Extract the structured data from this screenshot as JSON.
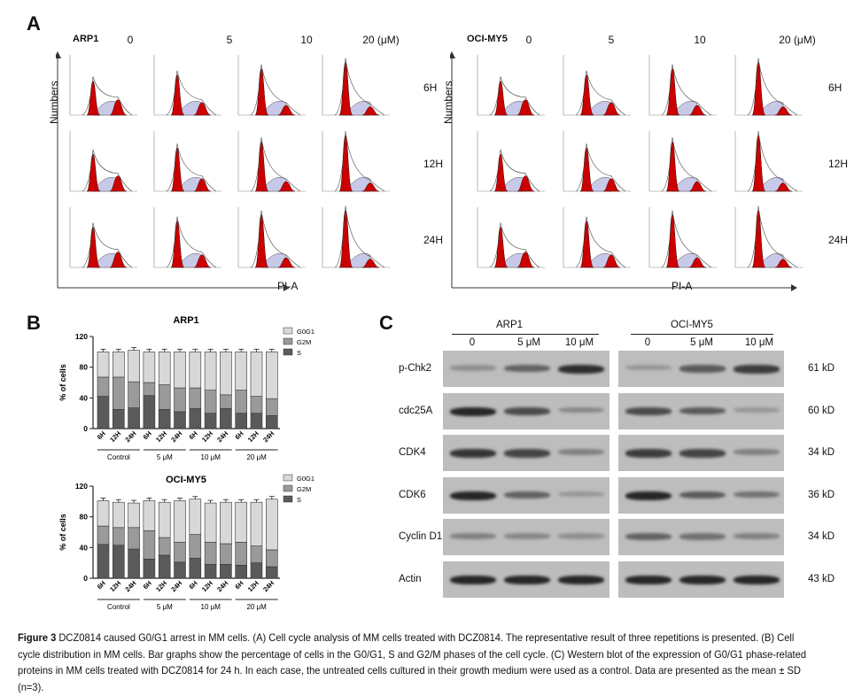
{
  "panel_a": {
    "label": "A",
    "concentrations": [
      "0",
      "5",
      "10",
      "20 (μM)"
    ],
    "times": [
      "6H",
      "12H",
      "24H"
    ],
    "y_axis_label": "Numbers",
    "x_axis_label": "PI-A",
    "groups": [
      {
        "name": "ARP1"
      },
      {
        "name": "OCI-MY5"
      }
    ],
    "colors": {
      "g1_g2_peak": "#cc0000",
      "s_phase": "#c8c8e8"
    }
  },
  "panel_b": {
    "label": "B"
  },
  "chart_data": [
    {
      "type": "bar",
      "stacked": true,
      "title": "ARP1",
      "ylabel": "% of cells",
      "ylim": [
        0,
        120
      ],
      "yticks": [
        0,
        40,
        80,
        120
      ],
      "categories": [
        "6H",
        "12H",
        "24H",
        "6H",
        "12H",
        "24H",
        "6H",
        "12H",
        "24H",
        "6H",
        "12H",
        "24H"
      ],
      "groups": [
        "Control",
        "5 μM",
        "10 μM",
        "20 μM"
      ],
      "legend": "right",
      "series": [
        {
          "name": "S",
          "color": "#5a5a5a",
          "values": [
            42,
            25,
            27,
            43,
            25,
            22,
            26,
            20,
            26,
            20,
            20,
            17
          ]
        },
        {
          "name": "G2M",
          "color": "#9a9a9a",
          "values": [
            25,
            42,
            34,
            17,
            32,
            31,
            27,
            30,
            18,
            30,
            22,
            22
          ]
        },
        {
          "name": "G0G1",
          "color": "#d8d8d8",
          "values": [
            33,
            33,
            41,
            40,
            43,
            47,
            47,
            50,
            56,
            50,
            58,
            61
          ]
        }
      ]
    },
    {
      "type": "bar",
      "stacked": true,
      "title": "OCI-MY5",
      "ylabel": "% of cells",
      "ylim": [
        0,
        120
      ],
      "yticks": [
        0,
        40,
        80,
        120
      ],
      "categories": [
        "6H",
        "12H",
        "24H",
        "6H",
        "12H",
        "24H",
        "6H",
        "12H",
        "24H",
        "6H",
        "12H",
        "24H"
      ],
      "groups": [
        "Control",
        "5 μM",
        "10 μM",
        "20 μM"
      ],
      "legend": "right",
      "series": [
        {
          "name": "S",
          "color": "#5a5a5a",
          "values": [
            44,
            43,
            38,
            25,
            30,
            21,
            26,
            18,
            18,
            17,
            20,
            15
          ]
        },
        {
          "name": "G2M",
          "color": "#9a9a9a",
          "values": [
            24,
            23,
            28,
            37,
            23,
            26,
            31,
            29,
            27,
            30,
            22,
            22
          ]
        },
        {
          "name": "G0G1",
          "color": "#d8d8d8",
          "values": [
            33,
            33,
            32,
            39,
            46,
            54,
            46,
            51,
            54,
            52,
            57,
            66
          ]
        }
      ]
    }
  ],
  "panel_c": {
    "label": "C",
    "groups": [
      {
        "name": "ARP1",
        "lanes": [
          "0",
          "5 μM",
          "10 μM"
        ]
      },
      {
        "name": "OCI-MY5",
        "lanes": [
          "0",
          "5 μM",
          "10 μM"
        ]
      }
    ],
    "rows": [
      {
        "protein": "p-Chk2",
        "size": "61 kD",
        "intensity": [
          0.25,
          0.55,
          0.9,
          0.2,
          0.6,
          0.8
        ]
      },
      {
        "protein": "cdc25A",
        "size": "60 kD",
        "intensity": [
          0.95,
          0.7,
          0.3,
          0.7,
          0.6,
          0.2
        ]
      },
      {
        "protein": "CDK4",
        "size": "34 kD",
        "intensity": [
          0.85,
          0.75,
          0.35,
          0.8,
          0.75,
          0.35
        ]
      },
      {
        "protein": "CDK6",
        "size": "36 kD",
        "intensity": [
          0.95,
          0.55,
          0.2,
          0.95,
          0.6,
          0.45
        ]
      },
      {
        "protein": "Cyclin D1",
        "size": "34 kD",
        "intensity": [
          0.35,
          0.3,
          0.25,
          0.55,
          0.45,
          0.35
        ]
      },
      {
        "protein": "Actin",
        "size": "43 kD",
        "intensity": [
          0.95,
          0.95,
          0.95,
          0.95,
          0.95,
          0.95
        ]
      }
    ]
  },
  "caption": {
    "figure_label": "Figure 3",
    "text": " DCZ0814 caused G0/G1 arrest in MM cells. (A) Cell cycle analysis of MM cells treated with DCZ0814. The representative result of three repetitions is presented. (B) Cell cycle distribution in MM cells. Bar graphs show the percentage of cells in the G0/G1, S and G2/M phases of the cell cycle. (C) Western blot of the expression of G0/G1 phase-related proteins in MM cells treated with DCZ0814 for 24 h. In each case, the untreated cells cultured in their growth medium were used as a control. Data are presented as the mean ± SD (n=3)."
  }
}
